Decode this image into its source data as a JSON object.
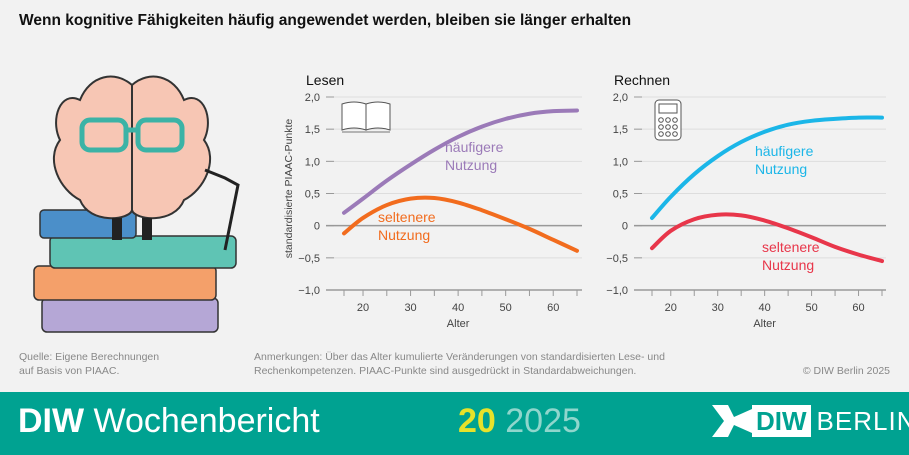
{
  "title": "Wenn kognitive Fähigkeiten häufig angewendet werden, bleiben sie länger erhalten",
  "chart_data": [
    {
      "type": "line",
      "title": "Lesen",
      "icon": "book-icon",
      "xlabel": "Alter",
      "ylabel": "standardisierte PIAAC-Punkte",
      "xlim": [
        16,
        65
      ],
      "ylim": [
        -1.0,
        2.0
      ],
      "xticks": [
        20,
        30,
        40,
        50,
        60
      ],
      "yticks": [
        "2,0",
        "1,5",
        "1,0",
        "0,5",
        "0",
        "−0,5",
        "−1,0"
      ],
      "grid": true,
      "x": [
        16,
        20,
        25,
        30,
        35,
        40,
        45,
        50,
        55,
        60,
        65
      ],
      "series": [
        {
          "name": "häufigere Nutzung",
          "label_lines": [
            "häufigere",
            "Nutzung"
          ],
          "color": "#9b7ab8",
          "values": [
            0.2,
            0.42,
            0.7,
            0.95,
            1.18,
            1.38,
            1.54,
            1.66,
            1.74,
            1.78,
            1.79
          ]
        },
        {
          "name": "seltenere Nutzung",
          "label_lines": [
            "seltenere",
            "Nutzung"
          ],
          "color": "#f26c1e",
          "values": [
            -0.12,
            0.12,
            0.32,
            0.42,
            0.43,
            0.36,
            0.24,
            0.1,
            -0.05,
            -0.22,
            -0.39
          ]
        }
      ]
    },
    {
      "type": "line",
      "title": "Rechnen",
      "icon": "calculator-icon",
      "xlabel": "Alter",
      "ylabel": "",
      "xlim": [
        16,
        65
      ],
      "ylim": [
        -1.0,
        2.0
      ],
      "xticks": [
        20,
        30,
        40,
        50,
        60
      ],
      "yticks": [
        "2,0",
        "1,5",
        "1,0",
        "0,5",
        "0",
        "−0,5",
        "−1,0"
      ],
      "grid": true,
      "x": [
        16,
        20,
        25,
        30,
        35,
        40,
        45,
        50,
        55,
        60,
        65
      ],
      "series": [
        {
          "name": "häufigere Nutzung",
          "label_lines": [
            "häufigere",
            "Nutzung"
          ],
          "color": "#1bb6e8",
          "values": [
            0.12,
            0.45,
            0.8,
            1.08,
            1.3,
            1.46,
            1.57,
            1.63,
            1.66,
            1.68,
            1.68
          ]
        },
        {
          "name": "seltenere Nutzung",
          "label_lines": [
            "seltenere",
            "Nutzung"
          ],
          "color": "#e8364a",
          "values": [
            -0.35,
            -0.08,
            0.1,
            0.17,
            0.16,
            0.08,
            -0.04,
            -0.18,
            -0.33,
            -0.45,
            -0.55
          ]
        }
      ]
    }
  ],
  "footer": {
    "source_lines": [
      "Quelle: Eigene Berechnungen",
      "auf Basis von PIAAC."
    ],
    "notes_lines": [
      "Anmerkungen: Über das Alter kumulierte Veränderungen von standardisierten Lese- und",
      "Rechenkompetenzen. PIAAC-Punkte sind ausgedrückt in Standardabweichungen."
    ],
    "copyright": "© DIW Berlin 2025"
  },
  "band": {
    "brand_bold": "DIW",
    "brand_rest": " Wochenbericht",
    "issue_number": "20",
    "issue_year": " 2025",
    "logo_diw": "DIW",
    "logo_berlin": "BERLIN",
    "color": "#00a291"
  }
}
